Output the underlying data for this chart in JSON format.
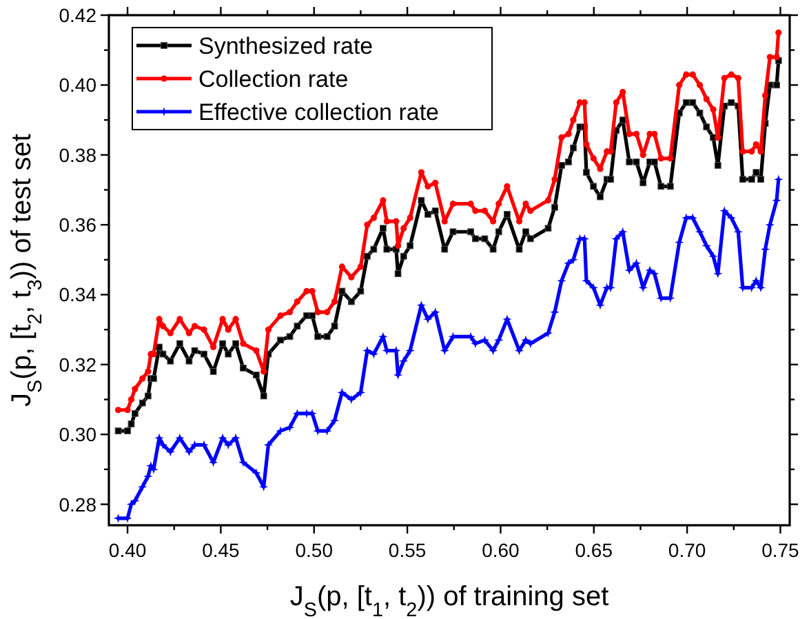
{
  "chart_data": {
    "type": "line",
    "xlabel": "J$_{S}$(p, [t$_{1}$, t$_{2}$)) of training set",
    "ylabel": "J$_{S}$(p, [t$_{2}$, t$_{3}$)) of test set",
    "x": [
      0.395,
      0.4,
      0.402,
      0.404,
      0.408,
      0.411,
      0.4125,
      0.414,
      0.417,
      0.419,
      0.423,
      0.428,
      0.433,
      0.436,
      0.441,
      0.446,
      0.451,
      0.454,
      0.458,
      0.462,
      0.469,
      0.473,
      0.4755,
      0.482,
      0.487,
      0.491,
      0.496,
      0.499,
      0.502,
      0.507,
      0.511,
      0.515,
      0.52,
      0.525,
      0.5285,
      0.532,
      0.537,
      0.539,
      0.544,
      0.545,
      0.548,
      0.5515,
      0.5575,
      0.561,
      0.565,
      0.57,
      0.5745,
      0.584,
      0.5865,
      0.5915,
      0.596,
      0.599,
      0.6035,
      0.61,
      0.6135,
      0.616,
      0.6255,
      0.629,
      0.6327,
      0.6364,
      0.639,
      0.6425,
      0.645,
      0.646,
      0.6498,
      0.6534,
      0.657,
      0.659,
      0.662,
      0.6655,
      0.669,
      0.6728,
      0.6764,
      0.68,
      0.6825,
      0.686,
      0.691,
      0.6958,
      0.6995,
      0.703,
      0.7068,
      0.7104,
      0.714,
      0.7165,
      0.72,
      0.7237,
      0.7274,
      0.7298,
      0.7346,
      0.737,
      0.7395,
      0.7419,
      0.7444,
      0.748,
      0.749
    ],
    "series": [
      {
        "name": "Synthesized rate",
        "color": "#000000",
        "marker": "square",
        "values": [
          0.301,
          0.301,
          0.303,
          0.306,
          0.309,
          0.311,
          0.316,
          0.316,
          0.325,
          0.323,
          0.321,
          0.326,
          0.321,
          0.324,
          0.323,
          0.318,
          0.326,
          0.323,
          0.326,
          0.319,
          0.317,
          0.311,
          0.323,
          0.327,
          0.328,
          0.331,
          0.334,
          0.334,
          0.328,
          0.328,
          0.331,
          0.341,
          0.338,
          0.341,
          0.351,
          0.353,
          0.359,
          0.353,
          0.353,
          0.346,
          0.351,
          0.354,
          0.367,
          0.363,
          0.364,
          0.353,
          0.358,
          0.358,
          0.356,
          0.356,
          0.353,
          0.358,
          0.363,
          0.353,
          0.358,
          0.356,
          0.359,
          0.365,
          0.377,
          0.378,
          0.382,
          0.388,
          0.388,
          0.375,
          0.371,
          0.368,
          0.373,
          0.373,
          0.387,
          0.39,
          0.378,
          0.378,
          0.372,
          0.378,
          0.378,
          0.371,
          0.371,
          0.392,
          0.395,
          0.395,
          0.392,
          0.388,
          0.385,
          0.377,
          0.394,
          0.395,
          0.394,
          0.373,
          0.373,
          0.375,
          0.373,
          0.389,
          0.4,
          0.4,
          0.407
        ]
      },
      {
        "name": "Collection rate",
        "color": "#ff0000",
        "marker": "circle",
        "values": [
          0.307,
          0.307,
          0.31,
          0.313,
          0.316,
          0.318,
          0.323,
          0.323,
          0.333,
          0.331,
          0.329,
          0.333,
          0.329,
          0.331,
          0.33,
          0.325,
          0.333,
          0.33,
          0.333,
          0.326,
          0.324,
          0.318,
          0.33,
          0.334,
          0.335,
          0.338,
          0.341,
          0.341,
          0.335,
          0.335,
          0.338,
          0.348,
          0.345,
          0.348,
          0.36,
          0.362,
          0.367,
          0.361,
          0.361,
          0.354,
          0.359,
          0.362,
          0.375,
          0.371,
          0.372,
          0.361,
          0.366,
          0.366,
          0.364,
          0.364,
          0.361,
          0.366,
          0.371,
          0.361,
          0.366,
          0.364,
          0.367,
          0.373,
          0.385,
          0.386,
          0.39,
          0.395,
          0.395,
          0.383,
          0.379,
          0.376,
          0.381,
          0.381,
          0.395,
          0.398,
          0.386,
          0.386,
          0.38,
          0.386,
          0.386,
          0.379,
          0.379,
          0.4,
          0.403,
          0.403,
          0.4,
          0.396,
          0.393,
          0.385,
          0.402,
          0.403,
          0.402,
          0.381,
          0.381,
          0.383,
          0.381,
          0.397,
          0.408,
          0.408,
          0.415
        ]
      },
      {
        "name": "Effective collection rate",
        "color": "#0000ff",
        "marker": "star",
        "values": [
          0.276,
          0.276,
          0.28,
          0.281,
          0.285,
          0.288,
          0.291,
          0.29,
          0.299,
          0.297,
          0.295,
          0.299,
          0.295,
          0.297,
          0.297,
          0.292,
          0.299,
          0.297,
          0.299,
          0.292,
          0.289,
          0.285,
          0.297,
          0.301,
          0.302,
          0.306,
          0.306,
          0.306,
          0.301,
          0.301,
          0.304,
          0.312,
          0.31,
          0.312,
          0.324,
          0.323,
          0.328,
          0.324,
          0.324,
          0.317,
          0.321,
          0.324,
          0.337,
          0.333,
          0.335,
          0.324,
          0.328,
          0.328,
          0.326,
          0.327,
          0.324,
          0.327,
          0.333,
          0.324,
          0.327,
          0.326,
          0.329,
          0.335,
          0.344,
          0.349,
          0.35,
          0.356,
          0.356,
          0.344,
          0.342,
          0.337,
          0.342,
          0.342,
          0.356,
          0.358,
          0.347,
          0.349,
          0.342,
          0.347,
          0.346,
          0.339,
          0.339,
          0.355,
          0.362,
          0.362,
          0.358,
          0.354,
          0.351,
          0.346,
          0.364,
          0.362,
          0.358,
          0.342,
          0.342,
          0.344,
          0.342,
          0.353,
          0.36,
          0.367,
          0.373
        ]
      }
    ],
    "xlim": [
      0.39,
      0.755
    ],
    "ylim": [
      0.274,
      0.42
    ],
    "xticks": [
      {
        "value": 0.4,
        "label": "0.40"
      },
      {
        "value": 0.425,
        "label": null
      },
      {
        "value": 0.45,
        "label": "0.45"
      },
      {
        "value": 0.475,
        "label": null
      },
      {
        "value": 0.5,
        "label": "0.50"
      },
      {
        "value": 0.525,
        "label": null
      },
      {
        "value": 0.55,
        "label": "0.55"
      },
      {
        "value": 0.575,
        "label": null
      },
      {
        "value": 0.6,
        "label": "0.60"
      },
      {
        "value": 0.625,
        "label": null
      },
      {
        "value": 0.65,
        "label": "0.65"
      },
      {
        "value": 0.675,
        "label": null
      },
      {
        "value": 0.7,
        "label": "0.70"
      },
      {
        "value": 0.725,
        "label": null
      },
      {
        "value": 0.75,
        "label": "0.75"
      }
    ],
    "yticks": [
      {
        "value": 0.28,
        "label": "0.28"
      },
      {
        "value": 0.29,
        "label": null
      },
      {
        "value": 0.3,
        "label": "0.30"
      },
      {
        "value": 0.31,
        "label": null
      },
      {
        "value": 0.32,
        "label": "0.32"
      },
      {
        "value": 0.33,
        "label": null
      },
      {
        "value": 0.34,
        "label": "0.34"
      },
      {
        "value": 0.35,
        "label": null
      },
      {
        "value": 0.36,
        "label": "0.36"
      },
      {
        "value": 0.37,
        "label": null
      },
      {
        "value": 0.38,
        "label": "0.38"
      },
      {
        "value": 0.39,
        "label": null
      },
      {
        "value": 0.4,
        "label": "0.40"
      },
      {
        "value": 0.41,
        "label": null
      },
      {
        "value": 0.42,
        "label": "0.42"
      }
    ],
    "grid": false,
    "legend": "top left",
    "line_style": "solid"
  }
}
